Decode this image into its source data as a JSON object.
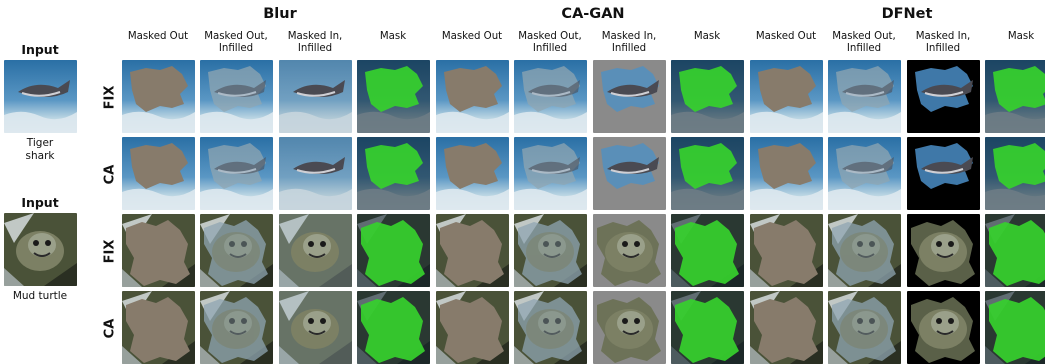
{
  "groups": [
    {
      "title": "Blur",
      "columns": [
        "Masked Out",
        "Masked Out, Infilled",
        "Masked In, Infilled",
        "Mask"
      ]
    },
    {
      "title": "CA-GAN",
      "columns": [
        "Masked Out",
        "Masked Out, Infilled",
        "Masked In, Infilled",
        "Mask"
      ]
    },
    {
      "title": "DFNet",
      "columns": [
        "Masked Out",
        "Masked Out, Infilled",
        "Masked In, Infilled",
        "Mask"
      ]
    }
  ],
  "inputs": [
    {
      "title": "Input",
      "caption": "Tiger shark",
      "scene": "shark"
    },
    {
      "title": "Input",
      "caption": "Mud turtle",
      "scene": "turtle"
    }
  ],
  "rows": [
    {
      "label": "FIX",
      "scene": "shark"
    },
    {
      "label": "CA",
      "scene": "shark"
    },
    {
      "label": "FIX",
      "scene": "turtle"
    },
    {
      "label": "CA",
      "scene": "turtle"
    }
  ],
  "colors": {
    "mask_fill": "#877b6b",
    "mask_green": "#36d12c",
    "ocean_top": "#2a6fa5",
    "ocean_bottom": "#bcd6e3",
    "turtle_bg": "#4a5238",
    "black": "#000000",
    "gray": "#8a8a8a"
  }
}
